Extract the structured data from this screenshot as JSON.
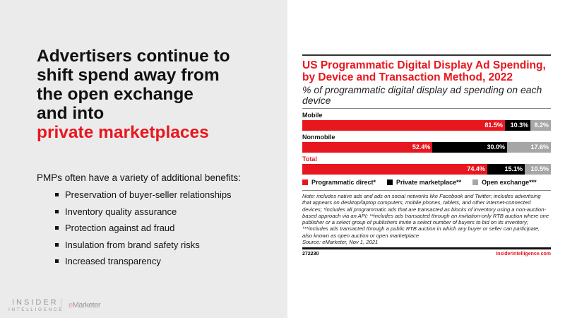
{
  "slide": {
    "headline": [
      "Advertisers continue to",
      "shift spend away from",
      "the open exchange",
      "and into"
    ],
    "headline_red": "private marketplaces",
    "intro": "PMPs often have a variety of additional benefits:",
    "bullets": [
      "Preservation of buyer-seller relationships",
      "Inventory quality assurance",
      "Protection against ad fraud",
      "Insulation from brand safety risks",
      "Increased transparency"
    ],
    "logo": {
      "line1": "INSIDER",
      "line2": "INTELLIGENCE",
      "e": "e",
      "marketer": "Marketer"
    }
  },
  "chart_data": {
    "type": "bar",
    "stacked": true,
    "orientation": "horizontal",
    "title": "US Programmatic Digital Display Ad Spending, by Device and Transaction Method, 2022",
    "subtitle": "% of programmatic digital display ad spending on each device",
    "categories": [
      "Mobile",
      "Nonmobile",
      "Total"
    ],
    "series": [
      {
        "name": "Programmatic direct*",
        "color": "#e8171f",
        "values": [
          81.5,
          52.4,
          74.4
        ],
        "labels": [
          "81.5%",
          "52.4%",
          "74.4%"
        ]
      },
      {
        "name": "Private marketplace**",
        "color": "#000000",
        "values": [
          10.3,
          30.0,
          15.1
        ],
        "labels": [
          "10.3%",
          "30.0%",
          "15.1%"
        ]
      },
      {
        "name": "Open exchange***",
        "color": "#a6a6a6",
        "values": [
          8.2,
          17.6,
          10.5
        ],
        "labels": [
          "8.2%",
          "17.6%",
          "10.5%"
        ]
      }
    ],
    "legend": "bottom",
    "note": "Note: includes native ads and ads on social networks like Facebook and Twitter; includes advertising that appears on desktop/laptop computers, mobile phones, tablets, and other internet-connected devices; *includes all programmatic ads that are transacted as blocks of inventory using a non-auction-based approach via an API; **includes ads transacted through an invitation-only RTB auction where one publisher or a select group of publishers invite a select number of buyers to bid on its inventory; ***includes ads transacted through a public RTB auction in which any buyer or seller can participate, also known as open auction or open marketplace",
    "source": "Source: eMarketer, Nov 1, 2021",
    "chart_id": "272230",
    "site": "InsiderIntelligence.com"
  }
}
